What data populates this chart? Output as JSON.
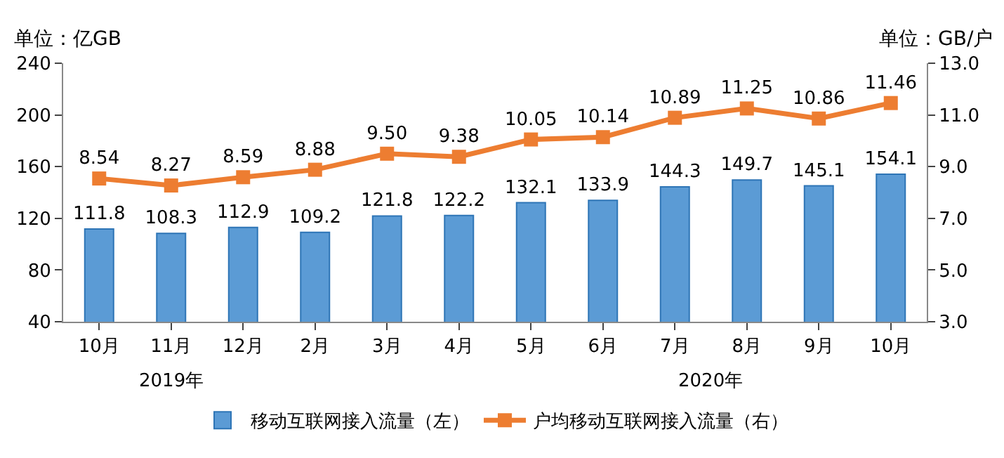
{
  "chart_data": {
    "type": "bar",
    "ylabel": "单位：亿GB",
    "y2label": "单位：GB/户",
    "categories": [
      "10月",
      "11月",
      "12月",
      "2月",
      "3月",
      "4月",
      "5月",
      "6月",
      "7月",
      "8月",
      "9月",
      "10月"
    ],
    "series": [
      {
        "name": "移动互联网接入流量（左）",
        "color": "#5b9bd5",
        "values": [
          111.8,
          108.3,
          112.9,
          109.2,
          121.8,
          122.2,
          132.1,
          133.9,
          144.3,
          149.7,
          145.1,
          154.1
        ]
      },
      {
        "name": "户均移动互联网接入流量（右）",
        "type": "line",
        "axis": "y2",
        "color": "#ed7d31",
        "marker": "square",
        "values": [
          8.54,
          8.27,
          8.59,
          8.88,
          9.5,
          9.38,
          10.05,
          10.14,
          10.89,
          11.25,
          10.86,
          11.46
        ],
        "value_labels": [
          "8.54",
          "8.27",
          "8.59",
          "8.88",
          "9.50",
          "9.38",
          "10.05",
          "10.14",
          "10.89",
          "11.25",
          "10.86",
          "11.46"
        ]
      }
    ],
    "data_labels": true,
    "ylim": [
      40,
      240
    ],
    "yticks": [
      40,
      80,
      120,
      160,
      200,
      240
    ],
    "y2lim": [
      3,
      13
    ],
    "y2ticks": [
      {
        "value": 3,
        "label": "3.0"
      },
      {
        "value": 5,
        "label": "5.0"
      },
      {
        "value": 7,
        "label": "7.0"
      },
      {
        "value": 9,
        "label": "9.0"
      },
      {
        "value": 11,
        "label": "11.0"
      },
      {
        "value": 13,
        "label": "13.0"
      }
    ],
    "annotations": [
      "2019年",
      "2020年"
    ],
    "legend": "bottom"
  }
}
